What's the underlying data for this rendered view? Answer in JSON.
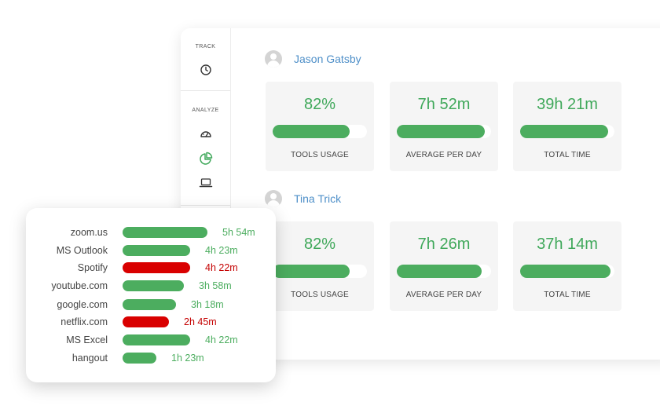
{
  "sidebar": {
    "track_label": "TRACK",
    "analyze_label": "ANALYZE"
  },
  "colors": {
    "green": "#4cad5f",
    "red": "#d90000",
    "name_blue": "#4e8fc8"
  },
  "users": [
    {
      "name": "Jason Gatsby",
      "cards": [
        {
          "value": "82%",
          "label": "TOOLS USAGE",
          "fill": 0.82
        },
        {
          "value": "7h 52m",
          "label": "AVERAGE PER DAY",
          "fill": 0.93
        },
        {
          "value": "39h 21m",
          "label": "TOTAL TIME",
          "fill": 0.93
        }
      ]
    },
    {
      "name": "Tina Trick",
      "cards": [
        {
          "value": "82%",
          "label": "TOOLS USAGE",
          "fill": 0.82
        },
        {
          "value": "7h 26m",
          "label": "AVERAGE PER DAY",
          "fill": 0.9
        },
        {
          "value": "37h 14m",
          "label": "TOTAL TIME",
          "fill": 0.96
        }
      ]
    }
  ],
  "apps": [
    {
      "name": "zoom.us",
      "time": "5h 54m",
      "status": "good",
      "fill": 1.0
    },
    {
      "name": "MS Outlook",
      "time": "4h 23m",
      "status": "good",
      "fill": 0.8
    },
    {
      "name": "Spotify",
      "time": "4h 22m",
      "status": "bad",
      "fill": 0.8
    },
    {
      "name": "youtube.com",
      "time": "3h 58m",
      "status": "good",
      "fill": 0.72
    },
    {
      "name": "google.com",
      "time": "3h 18m",
      "status": "good",
      "fill": 0.63
    },
    {
      "name": "netflix.com",
      "time": "2h 45m",
      "status": "bad",
      "fill": 0.55
    },
    {
      "name": "MS Excel",
      "time": "4h 22m",
      "status": "good",
      "fill": 0.8
    },
    {
      "name": "hangout",
      "time": "1h 23m",
      "status": "good",
      "fill": 0.4
    }
  ]
}
